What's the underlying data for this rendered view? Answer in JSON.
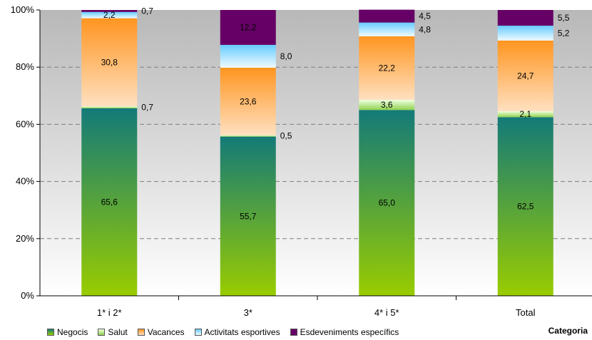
{
  "chart_data": {
    "type": "bar",
    "stacked": true,
    "percent_stacked": true,
    "categories": [
      "1* i 2*",
      "3*",
      "4* i 5*",
      "Total"
    ],
    "series": [
      {
        "name": "Negocis",
        "values": [
          65.6,
          55.7,
          65.0,
          62.5
        ],
        "labels": [
          "65,6",
          "55,7",
          "65,0",
          "62,5"
        ],
        "color_top": "#137A78",
        "color_bottom": "#99CC00"
      },
      {
        "name": "Salut",
        "values": [
          0.7,
          0.5,
          3.6,
          2.1
        ],
        "labels": [
          "0,7",
          "0,5",
          "3,6",
          "2,1"
        ],
        "color_top": "#F0FFE0",
        "color_bottom": "#8FD24E"
      },
      {
        "name": "Vacances",
        "values": [
          30.8,
          23.6,
          22.2,
          24.7
        ],
        "labels": [
          "30,8",
          "23,6",
          "22,2",
          "24,7"
        ],
        "color_top": "#FF9520",
        "color_bottom": "#FFE0C0"
      },
      {
        "name": "Activitats esportives",
        "values": [
          2.2,
          8.0,
          4.8,
          5.2
        ],
        "labels": [
          "2,2",
          "8,0",
          "4,8",
          "5,2"
        ],
        "color_top": "#66CCFF",
        "color_bottom": "#F0FAFF"
      },
      {
        "name": "Esdeveniments específics",
        "values": [
          0.7,
          12.2,
          4.5,
          5.5
        ],
        "labels": [
          "0,7",
          "12,2",
          "4,5",
          "5,5"
        ],
        "color_top": "#660066",
        "color_bottom": "#660066"
      }
    ],
    "y_ticks": [
      "0%",
      "20%",
      "40%",
      "60%",
      "80%",
      "100%"
    ],
    "ylim": [
      0,
      100
    ],
    "xlabel": "Categoria",
    "grid": true,
    "legend_position": "bottom"
  }
}
